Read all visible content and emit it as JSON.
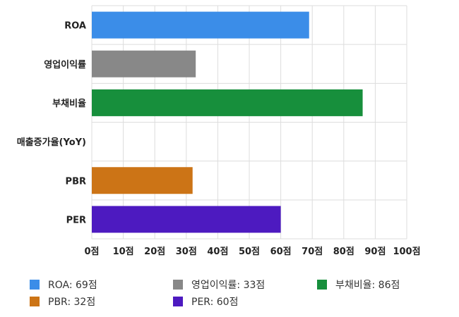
{
  "chart_data": {
    "type": "bar",
    "orientation": "horizontal",
    "categories": [
      "ROA",
      "영업이익률",
      "부채비율",
      "매출증가율(YoY)",
      "PBR",
      "PER"
    ],
    "values": [
      69,
      33,
      86,
      null,
      32,
      60
    ],
    "colors": [
      "#3b8de8",
      "#888888",
      "#178f3c",
      null,
      "#cc7416",
      "#4d1ac0"
    ],
    "x_ticks": [
      "0점",
      "10점",
      "20점",
      "30점",
      "40점",
      "50점",
      "60점",
      "70점",
      "80점",
      "90점",
      "100점"
    ],
    "xlim": [
      0,
      100
    ],
    "grid": true,
    "legend_position": "bottom",
    "title": "",
    "xlabel": "",
    "ylabel": ""
  },
  "legend": [
    {
      "label": "ROA: 69점",
      "color": "#3b8de8"
    },
    {
      "label": "영업이익률: 33점",
      "color": "#888888"
    },
    {
      "label": "부채비율: 86점",
      "color": "#178f3c"
    },
    {
      "label": "PBR: 32점",
      "color": "#cc7416"
    },
    {
      "label": "PER: 60점",
      "color": "#4d1ac0"
    }
  ]
}
